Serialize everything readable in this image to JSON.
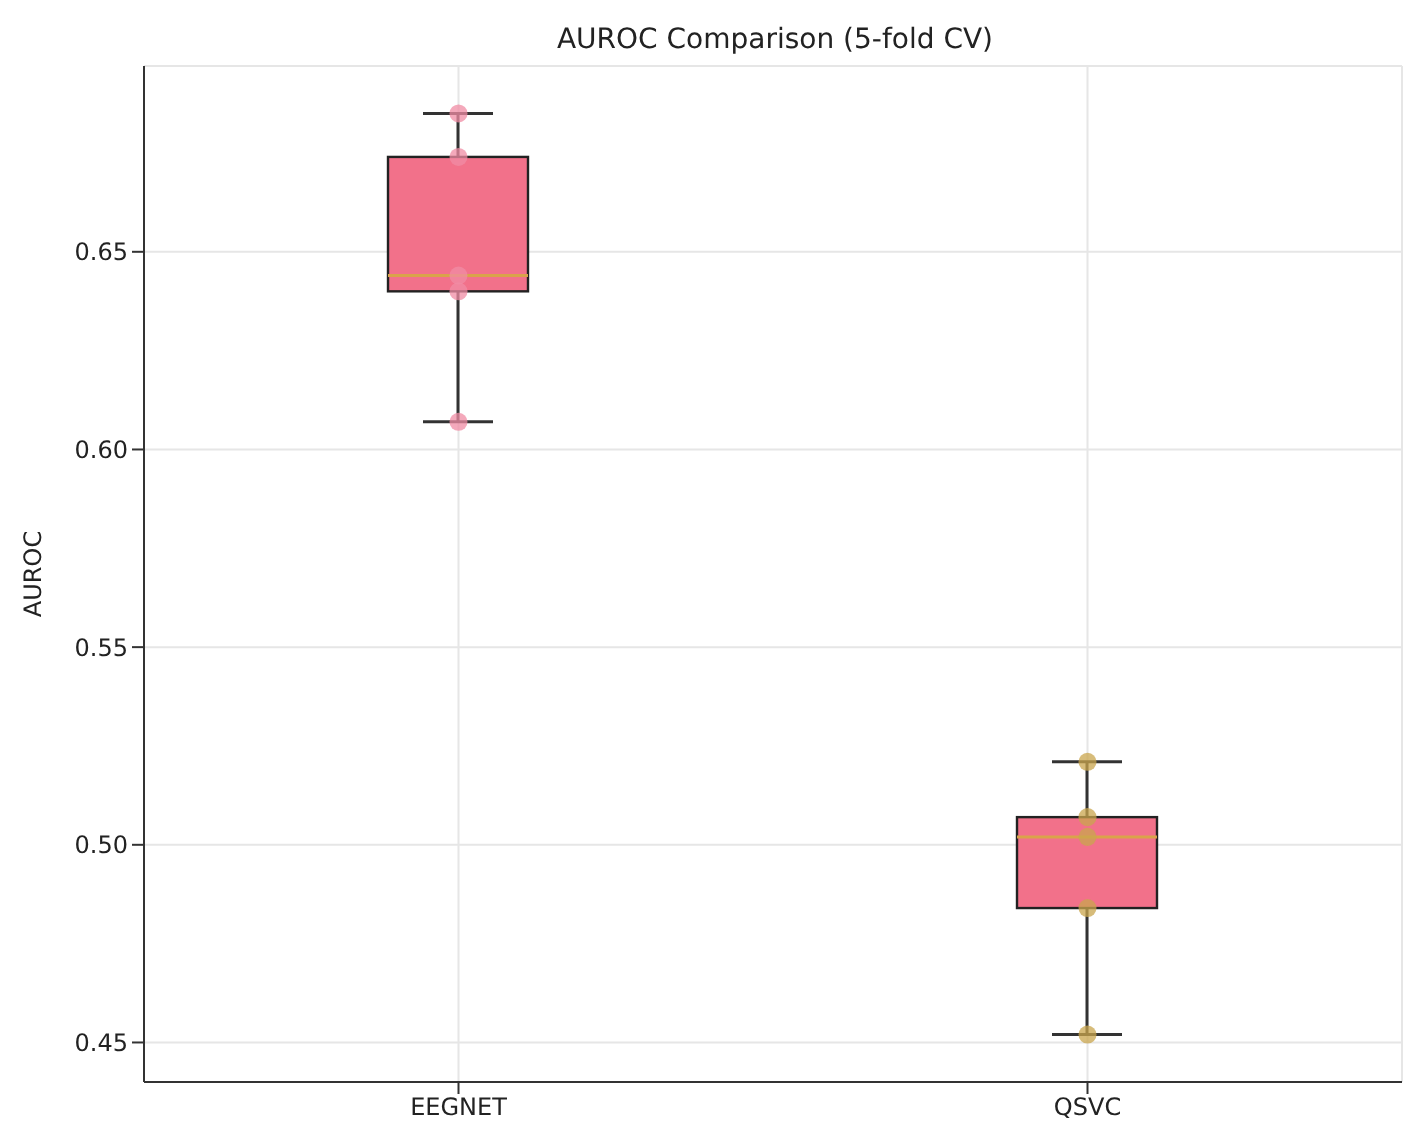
{
  "chart_data": {
    "type": "box",
    "title": "AUROC Comparison (5-fold CV)",
    "ylabel": "AUROC",
    "categories": [
      "EEGNET",
      "QSVC"
    ],
    "color": "#f2718a",
    "boxes": [
      {
        "low": 0.607,
        "q1": 0.64,
        "median": 0.644,
        "q3": 0.674,
        "high": 0.685
      },
      {
        "low": 0.452,
        "q1": 0.484,
        "median": 0.502,
        "q3": 0.507,
        "high": 0.521
      }
    ],
    "series": [
      {
        "type": "scatter",
        "x": [
          "EEGNET",
          "EEGNET",
          "EEGNET",
          "EEGNET",
          "EEGNET",
          "QSVC",
          "QSVC",
          "QSVC",
          "QSVC",
          "QSVC"
        ],
        "values": [
          0.685,
          0.674,
          0.644,
          0.64,
          0.607,
          0.521,
          0.507,
          0.502,
          0.484,
          0.452
        ],
        "colors": [
          "#f08ca4",
          "#f08ca4",
          "#f08ca4",
          "#f08ca4",
          "#f08ca4",
          "#c9a64e",
          "#c9a64e",
          "#c9a64e",
          "#c9a64e",
          "#c9a64e"
        ]
      }
    ],
    "ylim": [
      0.44,
      0.697
    ],
    "yticks": [
      0.45,
      {
        "value": 0.5,
        "label": "0.50"
      },
      0.55,
      {
        "value": 0.6,
        "label": "0.60"
      },
      0.65
    ],
    "grid": true
  }
}
